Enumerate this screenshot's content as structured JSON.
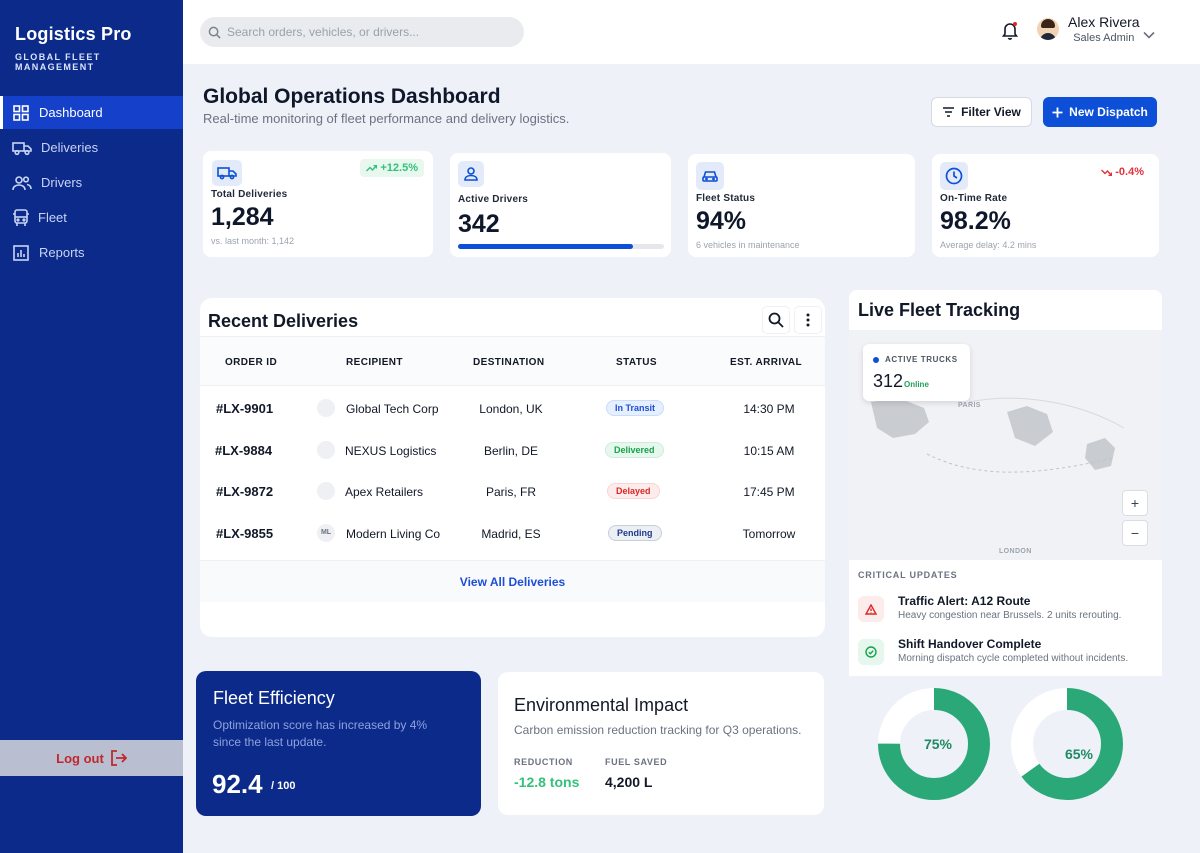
{
  "brand": {
    "title": "Logistics Pro",
    "subtitle": "GLOBAL FLEET MANAGEMENT"
  },
  "sidebar": {
    "items": [
      {
        "label": "Dashboard",
        "icon": "dashboard-icon",
        "active": true
      },
      {
        "label": "Deliveries",
        "icon": "truck-icon",
        "active": false
      },
      {
        "label": "Drivers",
        "icon": "users-icon",
        "active": false
      },
      {
        "label": "Fleet",
        "icon": "bus-icon",
        "active": false
      },
      {
        "label": "Reports",
        "icon": "chart-icon",
        "active": false
      }
    ],
    "logout_label": "Log out"
  },
  "topbar": {
    "search_placeholder": "Search orders, vehicles, or drivers...",
    "user_name": "Alex Rivera",
    "user_role": "Sales Admin"
  },
  "header": {
    "title": "Global Operations Dashboard",
    "subtitle": "Real-time monitoring of fleet performance and delivery logistics.",
    "filter_label": "Filter View",
    "new_label": "New Dispatch"
  },
  "stats": {
    "total": {
      "label": "Total Deliveries",
      "value": "1,284",
      "note": "vs. last month: 1,142",
      "badge": "+12.5%"
    },
    "drivers": {
      "label": "Active Drivers",
      "value": "342",
      "progress": 0.85
    },
    "fleet": {
      "label": "Fleet Status",
      "value": "94%",
      "note": "6 vehicles in maintenance"
    },
    "ontime": {
      "label": "On-Time Rate",
      "value": "98.2%",
      "note": "Average delay: 4.2 mins",
      "badge": "-0.4%"
    }
  },
  "deliveries": {
    "title": "Recent Deliveries",
    "columns": [
      "ORDER ID",
      "RECIPIENT",
      "DESTINATION",
      "STATUS",
      "EST. ARRIVAL"
    ],
    "rows": [
      {
        "id": "#LX-9901",
        "logo": "",
        "recipient": "Global Tech Corp",
        "destination": "London, UK",
        "status": "In Transit",
        "eta": "14:30 PM"
      },
      {
        "id": "#LX-9884",
        "logo": "",
        "recipient": "NEXUS Logistics",
        "destination": "Berlin, DE",
        "status": "Delivered",
        "eta": "10:15 AM"
      },
      {
        "id": "#LX-9872",
        "logo": "",
        "recipient": "Apex Retailers",
        "destination": "Paris, FR",
        "status": "Delayed",
        "eta": "17:45 PM"
      },
      {
        "id": "#LX-9855",
        "logo": "ML",
        "recipient": "Modern Living Co",
        "destination": "Madrid, ES",
        "status": "Pending",
        "eta": "Tomorrow"
      }
    ],
    "view_all": "View All Deliveries"
  },
  "tracking": {
    "title": "Live Fleet Tracking",
    "active_label": "ACTIVE TRUCKS",
    "active_count": "312",
    "active_status": "Online",
    "map_labels": {
      "paris": "PARIS",
      "london": "LONDON"
    },
    "zoom_in": "+",
    "zoom_out": "−",
    "updates_title": "CRITICAL UPDATES",
    "updates": [
      {
        "title": "Traffic Alert: A12 Route",
        "desc": "Heavy congestion near Brussels. 2 units rerouting.",
        "icon": "warning-icon"
      },
      {
        "title": "Shift Handover Complete",
        "desc": "Morning dispatch cycle completed without incidents.",
        "icon": "check-circle-icon"
      }
    ]
  },
  "donuts": [
    {
      "label": "75%",
      "value": 0.75
    },
    {
      "label": "65%",
      "value": 0.65
    }
  ],
  "efficiency": {
    "title": "Fleet Efficiency",
    "desc": "Optimization score has increased by 4% since the last update.",
    "score": "92.4",
    "max": "/ 100"
  },
  "environment": {
    "title": "Environmental Impact",
    "desc": "Carbon emission reduction tracking for Q3 operations.",
    "reduction_label": "REDUCTION",
    "reduction_value": "-12.8 tons",
    "fuel_label": "FUEL SAVED",
    "fuel_value": "4,200 L"
  },
  "colors": {
    "sidebar": "#0b2a8a",
    "accent": "#0d4fd6",
    "success": "#22a05a",
    "danger": "#dc2626",
    "donut": "#2aa878"
  }
}
